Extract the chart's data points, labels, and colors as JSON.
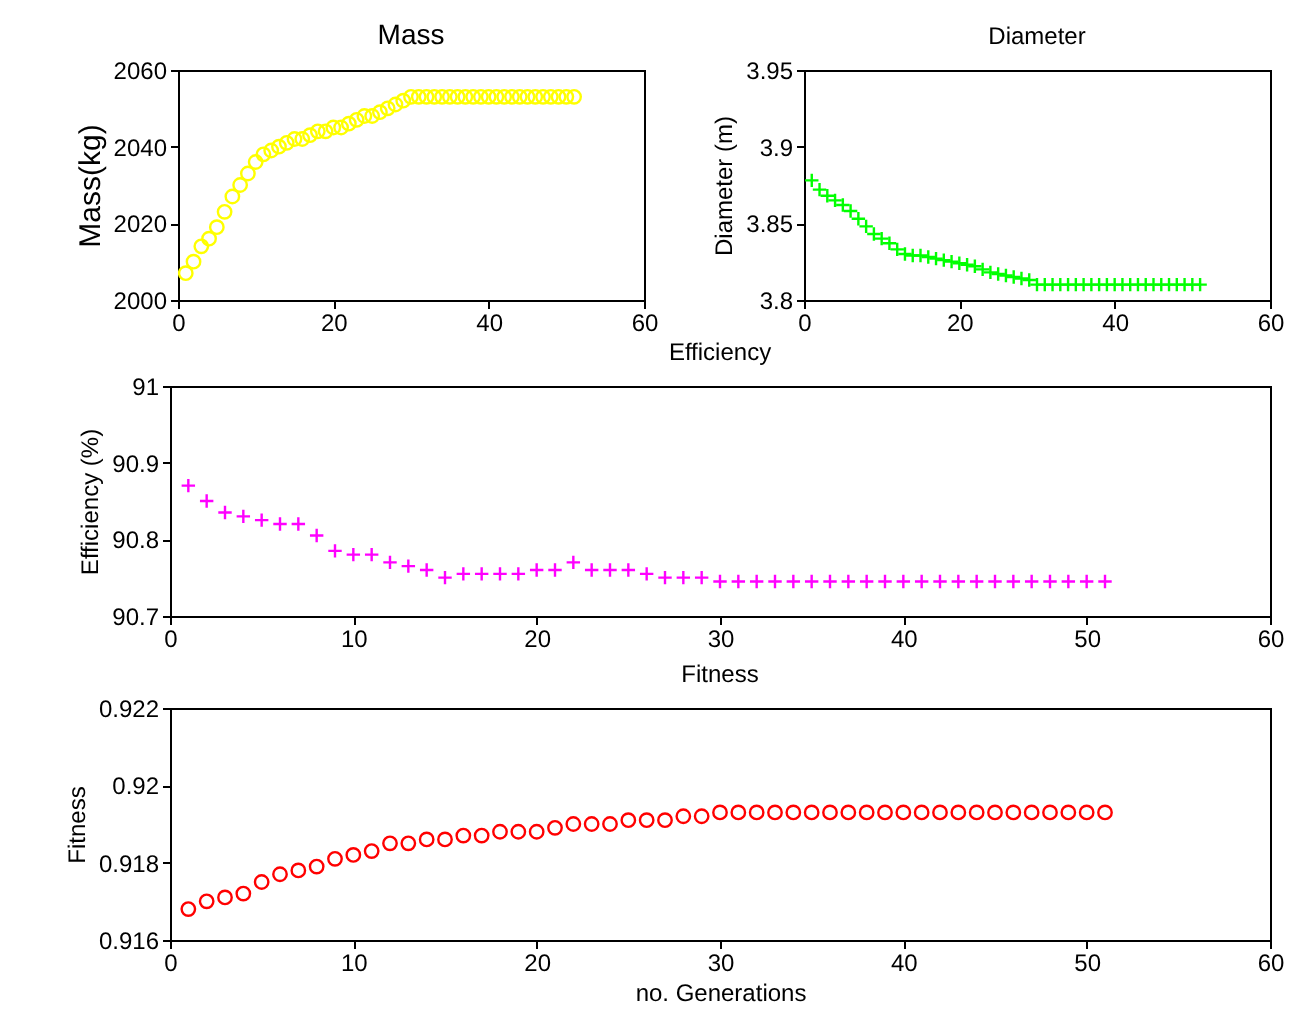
{
  "chart_data": [
    {
      "type": "scatter",
      "title": "Mass",
      "ylabel": "Mass(kg)",
      "marker": "circle",
      "x": [
        1,
        2,
        3,
        4,
        5,
        6,
        7,
        8,
        9,
        10,
        11,
        12,
        13,
        14,
        15,
        16,
        17,
        18,
        19,
        20,
        21,
        22,
        23,
        24,
        25,
        26,
        27,
        28,
        29,
        30,
        31,
        32,
        33,
        34,
        35,
        36,
        37,
        38,
        39,
        40,
        41,
        42,
        43,
        44,
        45,
        46,
        47,
        48,
        49,
        50,
        51
      ],
      "series": [
        {
          "color": "#ffff00",
          "values": [
            2007,
            2010,
            2014,
            2016,
            2019,
            2023,
            2027,
            2030,
            2033,
            2036,
            2038,
            2039,
            2040,
            2041,
            2042,
            2042,
            2043,
            2044,
            2044,
            2045,
            2045,
            2046,
            2047,
            2048,
            2048,
            2049,
            2050,
            2051,
            2052,
            2053,
            2053,
            2053,
            2053,
            2053,
            2053,
            2053,
            2053,
            2053,
            2053,
            2053,
            2053,
            2053,
            2053,
            2053,
            2053,
            2053,
            2053,
            2053,
            2053,
            2053,
            2053
          ]
        }
      ],
      "xlim": [
        0,
        60
      ],
      "xticks": [
        0,
        20,
        40,
        60
      ],
      "ylim": [
        2000,
        2060
      ],
      "yticks": [
        2000,
        2020,
        2040,
        2060
      ]
    },
    {
      "type": "scatter",
      "title": "Diameter",
      "ylabel": "Diameter (m)",
      "marker": "cross",
      "x": [
        1,
        2,
        3,
        4,
        5,
        6,
        7,
        8,
        9,
        10,
        11,
        12,
        13,
        14,
        15,
        16,
        17,
        18,
        19,
        20,
        21,
        22,
        23,
        24,
        25,
        26,
        27,
        28,
        29,
        30,
        31,
        32,
        33,
        34,
        35,
        36,
        37,
        38,
        39,
        40,
        41,
        42,
        43,
        44,
        45,
        46,
        47,
        48,
        49,
        50,
        51
      ],
      "series": [
        {
          "color": "#00ff00",
          "values": [
            3.878,
            3.872,
            3.868,
            3.865,
            3.862,
            3.858,
            3.853,
            3.848,
            3.843,
            3.84,
            3.837,
            3.833,
            3.83,
            3.829,
            3.829,
            3.828,
            3.827,
            3.826,
            3.825,
            3.824,
            3.823,
            3.822,
            3.82,
            3.818,
            3.817,
            3.816,
            3.815,
            3.814,
            3.813,
            3.81,
            3.81,
            3.81,
            3.81,
            3.81,
            3.81,
            3.81,
            3.81,
            3.81,
            3.81,
            3.81,
            3.81,
            3.81,
            3.81,
            3.81,
            3.81,
            3.81,
            3.81,
            3.81,
            3.81,
            3.81,
            3.81
          ]
        }
      ],
      "xlim": [
        0,
        60
      ],
      "xticks": [
        0,
        20,
        40,
        60
      ],
      "ylim": [
        3.8,
        3.95
      ],
      "yticks": [
        3.8,
        3.85,
        3.9,
        3.95
      ]
    },
    {
      "type": "scatter",
      "title": "Efficiency",
      "ylabel": "Efficiency (%)",
      "marker": "cross",
      "x": [
        1,
        2,
        3,
        4,
        5,
        6,
        7,
        8,
        9,
        10,
        11,
        12,
        13,
        14,
        15,
        16,
        17,
        18,
        19,
        20,
        21,
        22,
        23,
        24,
        25,
        26,
        27,
        28,
        29,
        30,
        31,
        32,
        33,
        34,
        35,
        36,
        37,
        38,
        39,
        40,
        41,
        42,
        43,
        44,
        45,
        46,
        47,
        48,
        49,
        50,
        51
      ],
      "series": [
        {
          "color": "#ff00ff",
          "values": [
            90.87,
            90.85,
            90.835,
            90.83,
            90.825,
            90.82,
            90.82,
            90.805,
            90.785,
            90.78,
            90.78,
            90.77,
            90.765,
            90.76,
            90.75,
            90.755,
            90.755,
            90.755,
            90.755,
            90.76,
            90.76,
            90.77,
            90.76,
            90.76,
            90.76,
            90.755,
            90.75,
            90.75,
            90.75,
            90.745,
            90.745,
            90.745,
            90.745,
            90.745,
            90.745,
            90.745,
            90.745,
            90.745,
            90.745,
            90.745,
            90.745,
            90.745,
            90.745,
            90.745,
            90.745,
            90.745,
            90.745,
            90.745,
            90.745,
            90.745,
            90.745
          ]
        }
      ],
      "xlim": [
        0,
        60
      ],
      "xticks": [
        0,
        10,
        20,
        30,
        40,
        50,
        60
      ],
      "ylim": [
        90.7,
        91
      ],
      "yticks": [
        90.7,
        90.8,
        90.9,
        91
      ]
    },
    {
      "type": "scatter",
      "title": "Fitness",
      "xlabel": "no. Generations",
      "ylabel": "Fitness",
      "marker": "circle",
      "x": [
        1,
        2,
        3,
        4,
        5,
        6,
        7,
        8,
        9,
        10,
        11,
        12,
        13,
        14,
        15,
        16,
        17,
        18,
        19,
        20,
        21,
        22,
        23,
        24,
        25,
        26,
        27,
        28,
        29,
        30,
        31,
        32,
        33,
        34,
        35,
        36,
        37,
        38,
        39,
        40,
        41,
        42,
        43,
        44,
        45,
        46,
        47,
        48,
        49,
        50,
        51
      ],
      "series": [
        {
          "color": "#ff0000",
          "values": [
            0.9168,
            0.917,
            0.9171,
            0.9172,
            0.9175,
            0.9177,
            0.9178,
            0.9179,
            0.9181,
            0.9182,
            0.9183,
            0.9185,
            0.9185,
            0.9186,
            0.9186,
            0.9187,
            0.9187,
            0.9188,
            0.9188,
            0.9188,
            0.9189,
            0.919,
            0.919,
            0.919,
            0.9191,
            0.9191,
            0.9191,
            0.9192,
            0.9192,
            0.9193,
            0.9193,
            0.9193,
            0.9193,
            0.9193,
            0.9193,
            0.9193,
            0.9193,
            0.9193,
            0.9193,
            0.9193,
            0.9193,
            0.9193,
            0.9193,
            0.9193,
            0.9193,
            0.9193,
            0.9193,
            0.9193,
            0.9193,
            0.9193,
            0.9193
          ]
        }
      ],
      "xlim": [
        0,
        60
      ],
      "xticks": [
        0,
        10,
        20,
        30,
        40,
        50,
        60
      ],
      "ylim": [
        0.916,
        0.922
      ],
      "yticks": [
        0.916,
        0.918,
        0.92,
        0.922
      ]
    }
  ]
}
